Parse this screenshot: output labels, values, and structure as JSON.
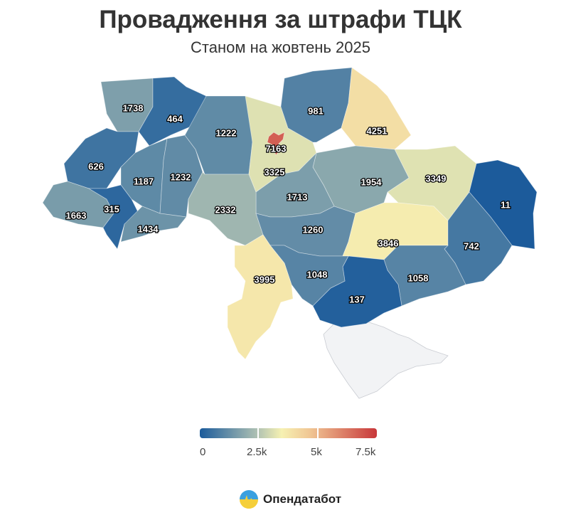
{
  "header": {
    "title": "Провадження за штрафи ТЦК",
    "subtitle": "Станом на жовтень 2025"
  },
  "map": {
    "regions": [
      {
        "value": 1738
      },
      {
        "value": 464
      },
      {
        "value": 626
      },
      {
        "value": 1187
      },
      {
        "value": 1232
      },
      {
        "value": 1222
      },
      {
        "value": 3325
      },
      {
        "value": 981
      },
      {
        "value": 4251
      },
      {
        "value": 3349
      },
      {
        "value": 11
      },
      {
        "value": 1954
      },
      {
        "value": 1713
      },
      {
        "value": 2332
      },
      {
        "value": 1663
      },
      {
        "value": 315
      },
      {
        "value": 1434
      },
      {
        "value": 1260
      },
      {
        "value": 3846
      },
      {
        "value": 742
      },
      {
        "value": 1058
      },
      {
        "value": 137
      },
      {
        "value": 1048
      },
      {
        "value": 3995
      },
      {
        "value": 7163
      }
    ],
    "no_data_color": "#f2f3f5"
  },
  "legend": {
    "min": 0,
    "max": 8000,
    "ticks": [
      "0",
      "2.5k",
      "5k",
      "7.5k"
    ],
    "stops": [
      {
        "value": 0,
        "color": "#1b5b9b"
      },
      {
        "value": 2500,
        "color": "#a9bdb2"
      },
      {
        "value": 3700,
        "color": "#f6f1b2"
      },
      {
        "value": 5000,
        "color": "#f0c593"
      },
      {
        "value": 8000,
        "color": "#c8373a"
      }
    ]
  },
  "footer": {
    "brand": "Опендатабот"
  }
}
